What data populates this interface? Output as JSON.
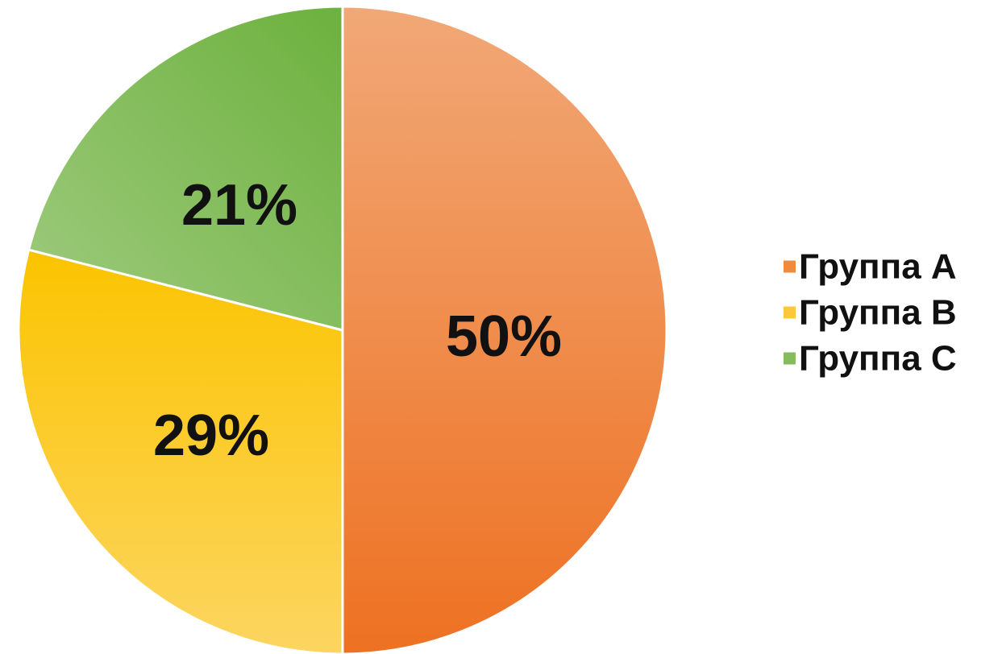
{
  "chart_data": {
    "type": "pie",
    "title": "",
    "legend_position": "right",
    "slices": [
      {
        "label": "Группа А",
        "value": 50,
        "display": "50%",
        "color": "#F08A3E"
      },
      {
        "label": "Группа В",
        "value": 29,
        "display": "29%",
        "color": "#FBC839"
      },
      {
        "label": "Группа С",
        "value": 21,
        "display": "21%",
        "color": "#86BC5E"
      }
    ]
  }
}
